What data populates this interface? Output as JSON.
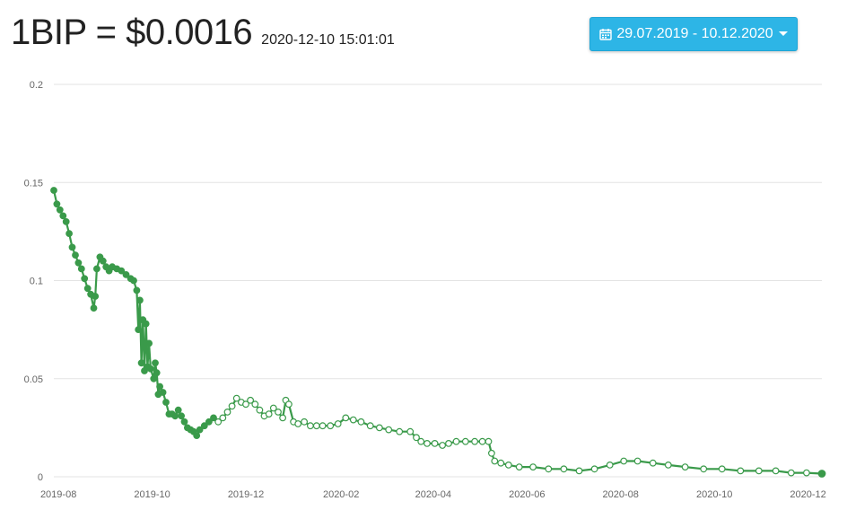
{
  "header": {
    "price_label": "1BIP = $0.0016",
    "timestamp": "2020-12-10 15:01:01"
  },
  "date_range": {
    "label": "29.07.2019 - 10.12.2020",
    "icon": "calendar-icon",
    "caret_icon": "caret-down-icon"
  },
  "colors": {
    "accent": "#2db5e6",
    "series": "#3a9a4a",
    "grid": "#e3e3e3"
  },
  "chart_data": {
    "type": "line",
    "title": "",
    "xlabel": "",
    "ylabel": "",
    "ylim": [
      0,
      0.2
    ],
    "yticks": [
      "0",
      "0.05",
      "0.1",
      "0.15",
      "0.2"
    ],
    "ytick_values": [
      0,
      0.05,
      0.1,
      0.15,
      0.2
    ],
    "xticks": [
      "2019-08",
      "2019-10",
      "2019-12",
      "2020-02",
      "2020-04",
      "2020-06",
      "2020-08",
      "2020-10",
      "2020-12"
    ],
    "xtick_dates": [
      "2019-08-01",
      "2019-10-01",
      "2019-12-01",
      "2020-02-01",
      "2020-04-01",
      "2020-06-01",
      "2020-08-01",
      "2020-10-01",
      "2020-12-01"
    ],
    "xlim": [
      "2019-07-29",
      "2020-12-10"
    ],
    "grid": true,
    "series": [
      {
        "values": [
          [
            "2019-07-29",
            0.146
          ],
          [
            "2019-07-31",
            0.139
          ],
          [
            "2019-08-02",
            0.136
          ],
          [
            "2019-08-04",
            0.133
          ],
          [
            "2019-08-06",
            0.13
          ],
          [
            "2019-08-08",
            0.124
          ],
          [
            "2019-08-10",
            0.117
          ],
          [
            "2019-08-12",
            0.113
          ],
          [
            "2019-08-14",
            0.109
          ],
          [
            "2019-08-16",
            0.106
          ],
          [
            "2019-08-18",
            0.101
          ],
          [
            "2019-08-20",
            0.096
          ],
          [
            "2019-08-22",
            0.093
          ],
          [
            "2019-08-24",
            0.086
          ],
          [
            "2019-08-25",
            0.092
          ],
          [
            "2019-08-26",
            0.106
          ],
          [
            "2019-08-28",
            0.112
          ],
          [
            "2019-08-30",
            0.11
          ],
          [
            "2019-09-01",
            0.107
          ],
          [
            "2019-09-03",
            0.105
          ],
          [
            "2019-09-05",
            0.107
          ],
          [
            "2019-09-08",
            0.106
          ],
          [
            "2019-09-11",
            0.105
          ],
          [
            "2019-09-14",
            0.103
          ],
          [
            "2019-09-17",
            0.101
          ],
          [
            "2019-09-19",
            0.1
          ],
          [
            "2019-09-21",
            0.095
          ],
          [
            "2019-09-22",
            0.075
          ],
          [
            "2019-09-23",
            0.09
          ],
          [
            "2019-09-24",
            0.058
          ],
          [
            "2019-09-25",
            0.08
          ],
          [
            "2019-09-26",
            0.054
          ],
          [
            "2019-09-27",
            0.078
          ],
          [
            "2019-09-28",
            0.056
          ],
          [
            "2019-09-29",
            0.068
          ],
          [
            "2019-09-30",
            0.055
          ],
          [
            "2019-10-02",
            0.05
          ],
          [
            "2019-10-03",
            0.058
          ],
          [
            "2019-10-04",
            0.053
          ],
          [
            "2019-10-05",
            0.042
          ],
          [
            "2019-10-06",
            0.046
          ],
          [
            "2019-10-08",
            0.043
          ],
          [
            "2019-10-10",
            0.038
          ],
          [
            "2019-10-12",
            0.032
          ],
          [
            "2019-10-14",
            0.032
          ],
          [
            "2019-10-16",
            0.031
          ],
          [
            "2019-10-18",
            0.034
          ],
          [
            "2019-10-20",
            0.031
          ],
          [
            "2019-10-22",
            0.028
          ],
          [
            "2019-10-24",
            0.025
          ],
          [
            "2019-10-26",
            0.024
          ],
          [
            "2019-10-28",
            0.023
          ],
          [
            "2019-10-30",
            0.021
          ],
          [
            "2019-11-01",
            0.024
          ],
          [
            "2019-11-04",
            0.026
          ],
          [
            "2019-11-07",
            0.028
          ],
          [
            "2019-11-10",
            0.03
          ],
          [
            "2019-11-13",
            0.028
          ],
          [
            "2019-11-16",
            0.03
          ],
          [
            "2019-11-19",
            0.033
          ],
          [
            "2019-11-22",
            0.036
          ],
          [
            "2019-11-25",
            0.04
          ],
          [
            "2019-11-28",
            0.038
          ],
          [
            "2019-12-01",
            0.037
          ],
          [
            "2019-12-04",
            0.039
          ],
          [
            "2019-12-07",
            0.037
          ],
          [
            "2019-12-10",
            0.034
          ],
          [
            "2019-12-13",
            0.031
          ],
          [
            "2019-12-16",
            0.032
          ],
          [
            "2019-12-19",
            0.035
          ],
          [
            "2019-12-22",
            0.033
          ],
          [
            "2019-12-25",
            0.03
          ],
          [
            "2019-12-27",
            0.039
          ],
          [
            "2019-12-29",
            0.037
          ],
          [
            "2020-01-01",
            0.028
          ],
          [
            "2020-01-04",
            0.027
          ],
          [
            "2020-01-08",
            0.028
          ],
          [
            "2020-01-12",
            0.026
          ],
          [
            "2020-01-16",
            0.026
          ],
          [
            "2020-01-20",
            0.026
          ],
          [
            "2020-01-25",
            0.026
          ],
          [
            "2020-01-30",
            0.027
          ],
          [
            "2020-02-04",
            0.03
          ],
          [
            "2020-02-09",
            0.029
          ],
          [
            "2020-02-14",
            0.028
          ],
          [
            "2020-02-20",
            0.026
          ],
          [
            "2020-02-26",
            0.025
          ],
          [
            "2020-03-03",
            0.024
          ],
          [
            "2020-03-10",
            0.023
          ],
          [
            "2020-03-17",
            0.023
          ],
          [
            "2020-03-21",
            0.02
          ],
          [
            "2020-03-24",
            0.018
          ],
          [
            "2020-03-28",
            0.017
          ],
          [
            "2020-04-02",
            0.017
          ],
          [
            "2020-04-07",
            0.016
          ],
          [
            "2020-04-11",
            0.017
          ],
          [
            "2020-04-16",
            0.018
          ],
          [
            "2020-04-22",
            0.018
          ],
          [
            "2020-04-28",
            0.018
          ],
          [
            "2020-05-03",
            0.018
          ],
          [
            "2020-05-07",
            0.018
          ],
          [
            "2020-05-09",
            0.012
          ],
          [
            "2020-05-11",
            0.008
          ],
          [
            "2020-05-15",
            0.007
          ],
          [
            "2020-05-20",
            0.006
          ],
          [
            "2020-05-27",
            0.005
          ],
          [
            "2020-06-05",
            0.005
          ],
          [
            "2020-06-15",
            0.004
          ],
          [
            "2020-06-25",
            0.004
          ],
          [
            "2020-07-05",
            0.003
          ],
          [
            "2020-07-15",
            0.004
          ],
          [
            "2020-07-25",
            0.006
          ],
          [
            "2020-08-03",
            0.008
          ],
          [
            "2020-08-12",
            0.008
          ],
          [
            "2020-08-22",
            0.007
          ],
          [
            "2020-09-01",
            0.006
          ],
          [
            "2020-09-12",
            0.005
          ],
          [
            "2020-09-24",
            0.004
          ],
          [
            "2020-10-06",
            0.004
          ],
          [
            "2020-10-18",
            0.003
          ],
          [
            "2020-10-30",
            0.003
          ],
          [
            "2020-11-10",
            0.003
          ],
          [
            "2020-11-20",
            0.002
          ],
          [
            "2020-11-30",
            0.002
          ],
          [
            "2020-12-10",
            0.0016
          ]
        ]
      }
    ]
  }
}
